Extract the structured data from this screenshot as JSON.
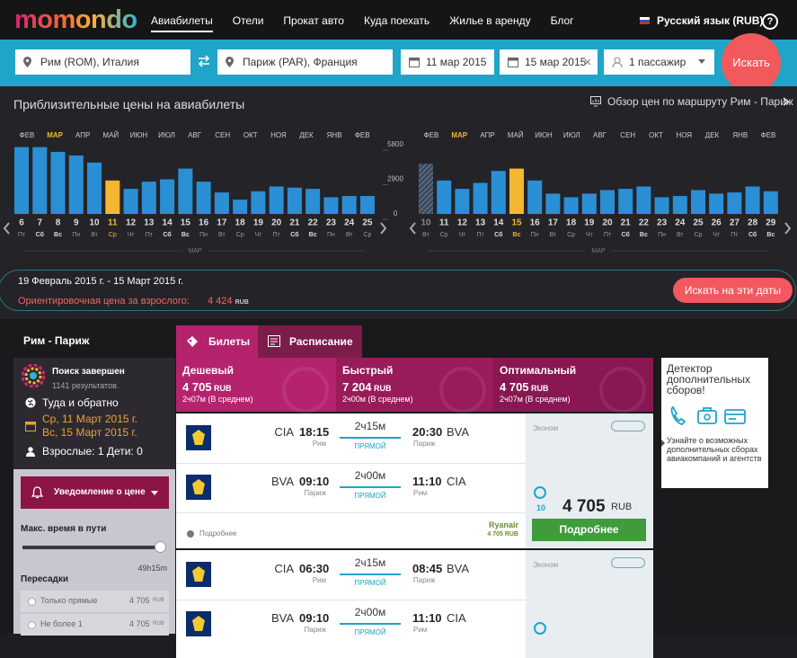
{
  "nav": {
    "logo": "momondo",
    "items": [
      "Авиабилеты",
      "Отели",
      "Прокат авто",
      "Куда поехать",
      "Жилье в аренду",
      "Блог"
    ],
    "language": "Русский язык (RUB)",
    "help": "?"
  },
  "search": {
    "from": "Рим (ROM), Италия",
    "to": "Париж (PAR), Франция",
    "depart": "11 мар 2015",
    "return": "15 мар 2015",
    "passengers": "1 пассажир",
    "button": "Искать"
  },
  "prices": {
    "title": "Приблизительные цены на авиабилеты",
    "overview_link": "Обзор цен по маршруту Рим - Париж",
    "ylim": [
      0,
      5800
    ],
    "yticks": [
      0,
      2900,
      5800
    ],
    "color": "#2b8fd6",
    "highlight_color": "#f5b731",
    "charts": [
      {
        "months": [
          "ФЕВ",
          "МАР",
          "АПР",
          "МАЙ",
          "ИЮН",
          "ИЮЛ",
          "АВГ",
          "СЕН",
          "ОКТ",
          "НОЯ",
          "ДЕК",
          "ЯНВ",
          "ФЕВ"
        ],
        "month_highlight_index": 1,
        "days": [
          6,
          7,
          8,
          9,
          10,
          11,
          12,
          13,
          14,
          15,
          16,
          17,
          18,
          19,
          20,
          21,
          22,
          23,
          24,
          25
        ],
        "weekdays": [
          "Пт",
          "Сб",
          "Вс",
          "Пн",
          "Вт",
          "Ср",
          "Чт",
          "Пт",
          "Сб",
          "Вс",
          "Пн",
          "Вт",
          "Ср",
          "Чт",
          "Пт",
          "Сб",
          "Вс",
          "Пн",
          "Вт",
          "Ср"
        ],
        "values": [
          5600,
          5600,
          5200,
          4900,
          4300,
          2800,
          2100,
          2700,
          2900,
          3800,
          2700,
          1800,
          1200,
          1900,
          2300,
          2200,
          2100,
          1400,
          1500,
          1500
        ],
        "highlight_index": 5,
        "month_label": "МАР"
      },
      {
        "months": [
          "ФЕВ",
          "МАР",
          "АПР",
          "МАЙ",
          "ИЮН",
          "ИЮЛ",
          "АВГ",
          "СЕН",
          "ОКТ",
          "НОЯ",
          "ДЕК",
          "ЯНВ",
          "ФЕВ"
        ],
        "month_highlight_index": 1,
        "days": [
          10,
          11,
          12,
          13,
          14,
          15,
          16,
          17,
          18,
          19,
          20,
          21,
          22,
          23,
          24,
          25,
          26,
          27,
          28,
          29
        ],
        "weekdays": [
          "Вт",
          "Ср",
          "Чт",
          "Пт",
          "Сб",
          "Вс",
          "Пн",
          "Вт",
          "Ср",
          "Чт",
          "Пт",
          "Сб",
          "Вс",
          "Пн",
          "Вт",
          "Ср",
          "Чт",
          "Пт",
          "Сб",
          "Вс"
        ],
        "values": [
          4200,
          2800,
          2100,
          2600,
          3600,
          3800,
          2800,
          1700,
          1400,
          1700,
          2000,
          2100,
          2300,
          1400,
          1500,
          2000,
          1700,
          1800,
          2300,
          1900
        ],
        "highlight_index": 5,
        "disabled_index": 0,
        "month_label": "МАР"
      }
    ]
  },
  "selection": {
    "dates": "19 Февраль 2015 г. - 15 Март 2015 г.",
    "label": "Ориентировочная цена за взрослого:",
    "price": "4 424",
    "currency": "RUB",
    "button": "Искать на эти даты"
  },
  "sidebar": {
    "route": "Рим - Париж",
    "status": "Поиск завершен",
    "results": "1141 результатов.",
    "trip": "Туда и обратно",
    "dates": [
      "Ср, 11 Март 2015 г.",
      "Вс, 15 Март 2015 г."
    ],
    "passengers": "Взрослые: 1 Дети: 0",
    "alert_button": "Уведомление о цене",
    "max_time_label": "Макс. время в пути",
    "max_time_value": "49h15m",
    "stops_label": "Пересадки",
    "stops": [
      {
        "label": "Только прямые",
        "price": "4 705",
        "currency": "RUB"
      },
      {
        "label": "Не более 1",
        "price": "4 705",
        "currency": "RUB"
      }
    ]
  },
  "tabs": [
    "Билеты",
    "Расписание"
  ],
  "summary": [
    {
      "label": "Дешевый",
      "price": "4 705",
      "currency": "RUB",
      "duration": "2ч07м (В среднем)"
    },
    {
      "label": "Быстрый",
      "price": "7 204",
      "currency": "RUB",
      "duration": "2ч00м (В среднем)"
    },
    {
      "label": "Оптимальный",
      "price": "4 705",
      "currency": "RUB",
      "duration": "2ч07м (В среднем)"
    }
  ],
  "fee_detector": {
    "title": "Детектор дополнительных сборов!",
    "text": "Узнайте о возможных дополнительных сборах авиакомпаний и агентств"
  },
  "results": [
    {
      "legs": [
        {
          "from": "CIA",
          "dep": "18:15",
          "from_city": "Рим",
          "duration": "2ч15м",
          "stops": "ПРЯМОЙ",
          "arr": "20:30",
          "to": "BVA",
          "to_city": "Париж"
        },
        {
          "from": "BVA",
          "dep": "09:10",
          "from_city": "Париж",
          "duration": "2ч00м",
          "stops": "ПРЯМОЙ",
          "arr": "11:10",
          "to": "CIA",
          "to_city": "Рим"
        }
      ],
      "cabin": "Эконом",
      "score": "10",
      "price": "4 705",
      "currency": "RUB",
      "button": "Подробнее",
      "details": "Подробнее",
      "airline": "Ryanair",
      "airline_price": "4 705 RUB"
    },
    {
      "legs": [
        {
          "from": "CIA",
          "dep": "06:30",
          "from_city": "Рим",
          "duration": "2ч15м",
          "stops": "ПРЯМОЙ",
          "arr": "08:45",
          "to": "BVA",
          "to_city": "Париж"
        },
        {
          "from": "BVA",
          "dep": "09:10",
          "from_city": "Париж",
          "duration": "2ч00м",
          "stops": "ПРЯМОЙ",
          "arr": "11:10",
          "to": "CIA",
          "to_city": "Рим"
        }
      ],
      "cabin": "Эконом"
    }
  ]
}
